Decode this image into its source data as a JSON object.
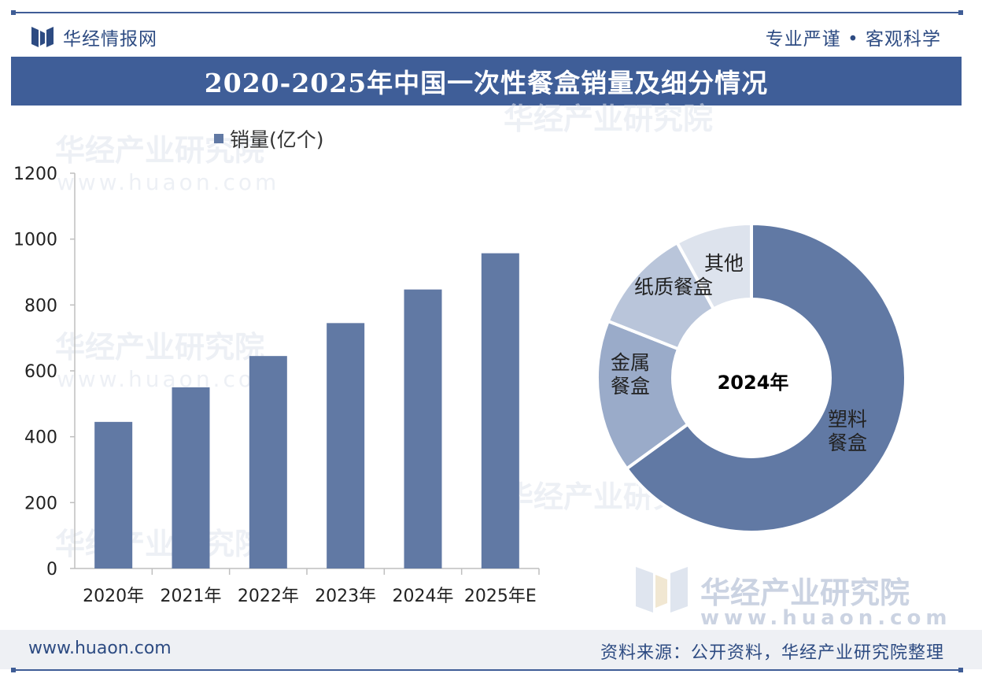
{
  "header": {
    "logo_text": "华经情报网",
    "slogan": "专业严谨 • 客观科学",
    "title": "2020-2025年中国一次性餐盒销量及细分情况"
  },
  "watermark": {
    "text": "华经产业研究院",
    "url": "www.huaon.com"
  },
  "chart_data": [
    {
      "type": "bar",
      "legend": "销量(亿个)",
      "categories": [
        "2020年",
        "2021年",
        "2022年",
        "2023年",
        "2024年",
        "2025年E"
      ],
      "series": [
        {
          "name": "销量(亿个)",
          "values": [
            445,
            550,
            645,
            745,
            847,
            957
          ]
        }
      ],
      "ylim": [
        0,
        1200
      ],
      "yticks": [
        0,
        200,
        400,
        600,
        800,
        1000,
        1200
      ],
      "grid": false,
      "color": "#6179a4"
    },
    {
      "type": "pie",
      "title": "2024年",
      "slices": [
        {
          "label": "塑料餐盒",
          "value": 65,
          "color": "#6179a4"
        },
        {
          "label": "金属餐盒",
          "value": 16,
          "color": "#9aabc9"
        },
        {
          "label": "纸质餐盒",
          "value": 11,
          "color": "#b9c5da"
        },
        {
          "label": "其他",
          "value": 8,
          "color": "#dde3ed"
        }
      ]
    }
  ],
  "footer": {
    "url": "www.huaon.com",
    "source": "资料来源：公开资料，华经产业研究院整理"
  }
}
